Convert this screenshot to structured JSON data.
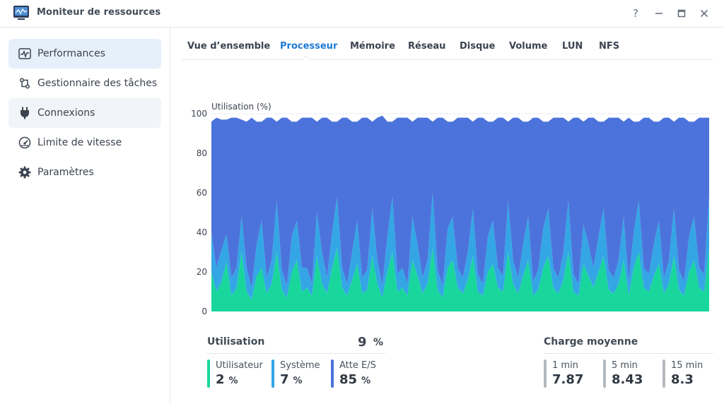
{
  "window": {
    "title": "Moniteur de ressources",
    "help_label": "?",
    "minimize_label": "—",
    "maximize_label": "□",
    "close_label": "✕"
  },
  "sidebar": {
    "items": [
      {
        "label": "Performances",
        "icon": "performance-icon",
        "state": "active"
      },
      {
        "label": "Gestionnaire des tâches",
        "icon": "task-manager-icon",
        "state": "normal"
      },
      {
        "label": "Connexions",
        "icon": "plug-icon",
        "state": "hover"
      },
      {
        "label": "Limite de vitesse",
        "icon": "speed-gauge-icon",
        "state": "normal"
      },
      {
        "label": "Paramètres",
        "icon": "gear-icon",
        "state": "normal"
      }
    ]
  },
  "tabs": [
    "Vue d’ensemble",
    "Processeur",
    "Mémoire",
    "Réseau",
    "Disque",
    "Volume",
    "LUN",
    "NFS"
  ],
  "active_tab": "Processeur",
  "chart_data": {
    "type": "area",
    "stacked": true,
    "ylabel": "Utilisation (%)",
    "ylim": [
      0,
      100
    ],
    "yticks": [
      0,
      20,
      40,
      60,
      80,
      100
    ],
    "grid": false,
    "legend": "none",
    "series": [
      {
        "color": "#19d69c",
        "values": [
          20,
          10,
          15,
          25,
          8,
          12,
          30,
          10,
          6,
          18,
          22,
          9,
          14,
          30,
          11,
          7,
          20,
          26,
          10,
          12,
          8,
          28,
          14,
          9,
          22,
          32,
          12,
          8,
          16,
          24,
          9,
          11,
          28,
          14,
          7,
          20,
          30,
          10,
          12,
          8,
          26,
          18,
          9,
          14,
          32,
          11,
          7,
          22,
          26,
          12,
          9,
          16,
          28,
          10,
          8,
          20,
          24,
          12,
          10,
          30,
          14,
          9,
          18,
          26,
          8,
          11,
          22,
          28,
          12,
          9,
          16,
          30,
          10,
          8,
          24,
          18,
          12,
          20,
          28,
          11,
          9,
          14,
          26,
          8,
          22,
          30,
          12,
          10,
          18,
          24,
          9,
          14,
          28,
          11,
          8,
          20,
          26,
          12,
          10,
          32
        ]
      },
      {
        "color": "#34a6e6",
        "values": [
          20,
          12,
          16,
          14,
          9,
          10,
          18,
          12,
          6,
          16,
          24,
          8,
          12,
          26,
          10,
          6,
          18,
          20,
          12,
          10,
          6,
          22,
          16,
          8,
          18,
          26,
          10,
          6,
          14,
          22,
          8,
          10,
          24,
          12,
          6,
          18,
          28,
          9,
          10,
          6,
          22,
          16,
          8,
          12,
          28,
          10,
          6,
          20,
          22,
          10,
          8,
          14,
          24,
          9,
          6,
          18,
          22,
          10,
          8,
          26,
          12,
          8,
          16,
          22,
          7,
          10,
          20,
          24,
          10,
          8,
          14,
          26,
          9,
          6,
          20,
          16,
          10,
          18,
          24,
          10,
          8,
          12,
          22,
          7,
          18,
          26,
          10,
          9,
          16,
          22,
          8,
          12,
          24,
          10,
          7,
          18,
          22,
          10,
          9,
          26
        ]
      },
      {
        "color": "#4c73db",
        "values": [
          56,
          76,
          66,
          58,
          81,
          76,
          49,
          74,
          86,
          62,
          50,
          81,
          72,
          40,
          77,
          85,
          58,
          50,
          76,
          76,
          84,
          46,
          68,
          81,
          56,
          38,
          76,
          84,
          66,
          50,
          81,
          77,
          44,
          72,
          86,
          58,
          38,
          79,
          76,
          84,
          48,
          64,
          81,
          72,
          36,
          77,
          85,
          54,
          48,
          76,
          81,
          68,
          44,
          79,
          84,
          58,
          50,
          76,
          80,
          40,
          72,
          81,
          62,
          48,
          83,
          77,
          54,
          44,
          76,
          81,
          68,
          40,
          79,
          84,
          52,
          64,
          76,
          58,
          44,
          77,
          81,
          72,
          48,
          83,
          56,
          40,
          76,
          79,
          62,
          50,
          81,
          72,
          44,
          77,
          83,
          58,
          48,
          76,
          79,
          40
        ]
      }
    ]
  },
  "utilization": {
    "title": "Utilisation",
    "value": "9",
    "unit": "%",
    "metrics": [
      {
        "label": "Utilisateur",
        "value": "2",
        "unit": "%",
        "color": "#19d69c"
      },
      {
        "label": "Système",
        "value": "7",
        "unit": "%",
        "color": "#34a6e6"
      },
      {
        "label": "Atte E/S",
        "value": "85",
        "unit": "%",
        "color": "#4c73db"
      }
    ]
  },
  "load_average": {
    "title": "Charge moyenne",
    "metrics": [
      {
        "label": "1 min",
        "value": "7.87",
        "color": "#b4b9c0"
      },
      {
        "label": "5 min",
        "value": "8.43",
        "color": "#b4b9c0"
      },
      {
        "label": "15 min",
        "value": "8.3",
        "color": "#b4b9c0"
      }
    ]
  }
}
